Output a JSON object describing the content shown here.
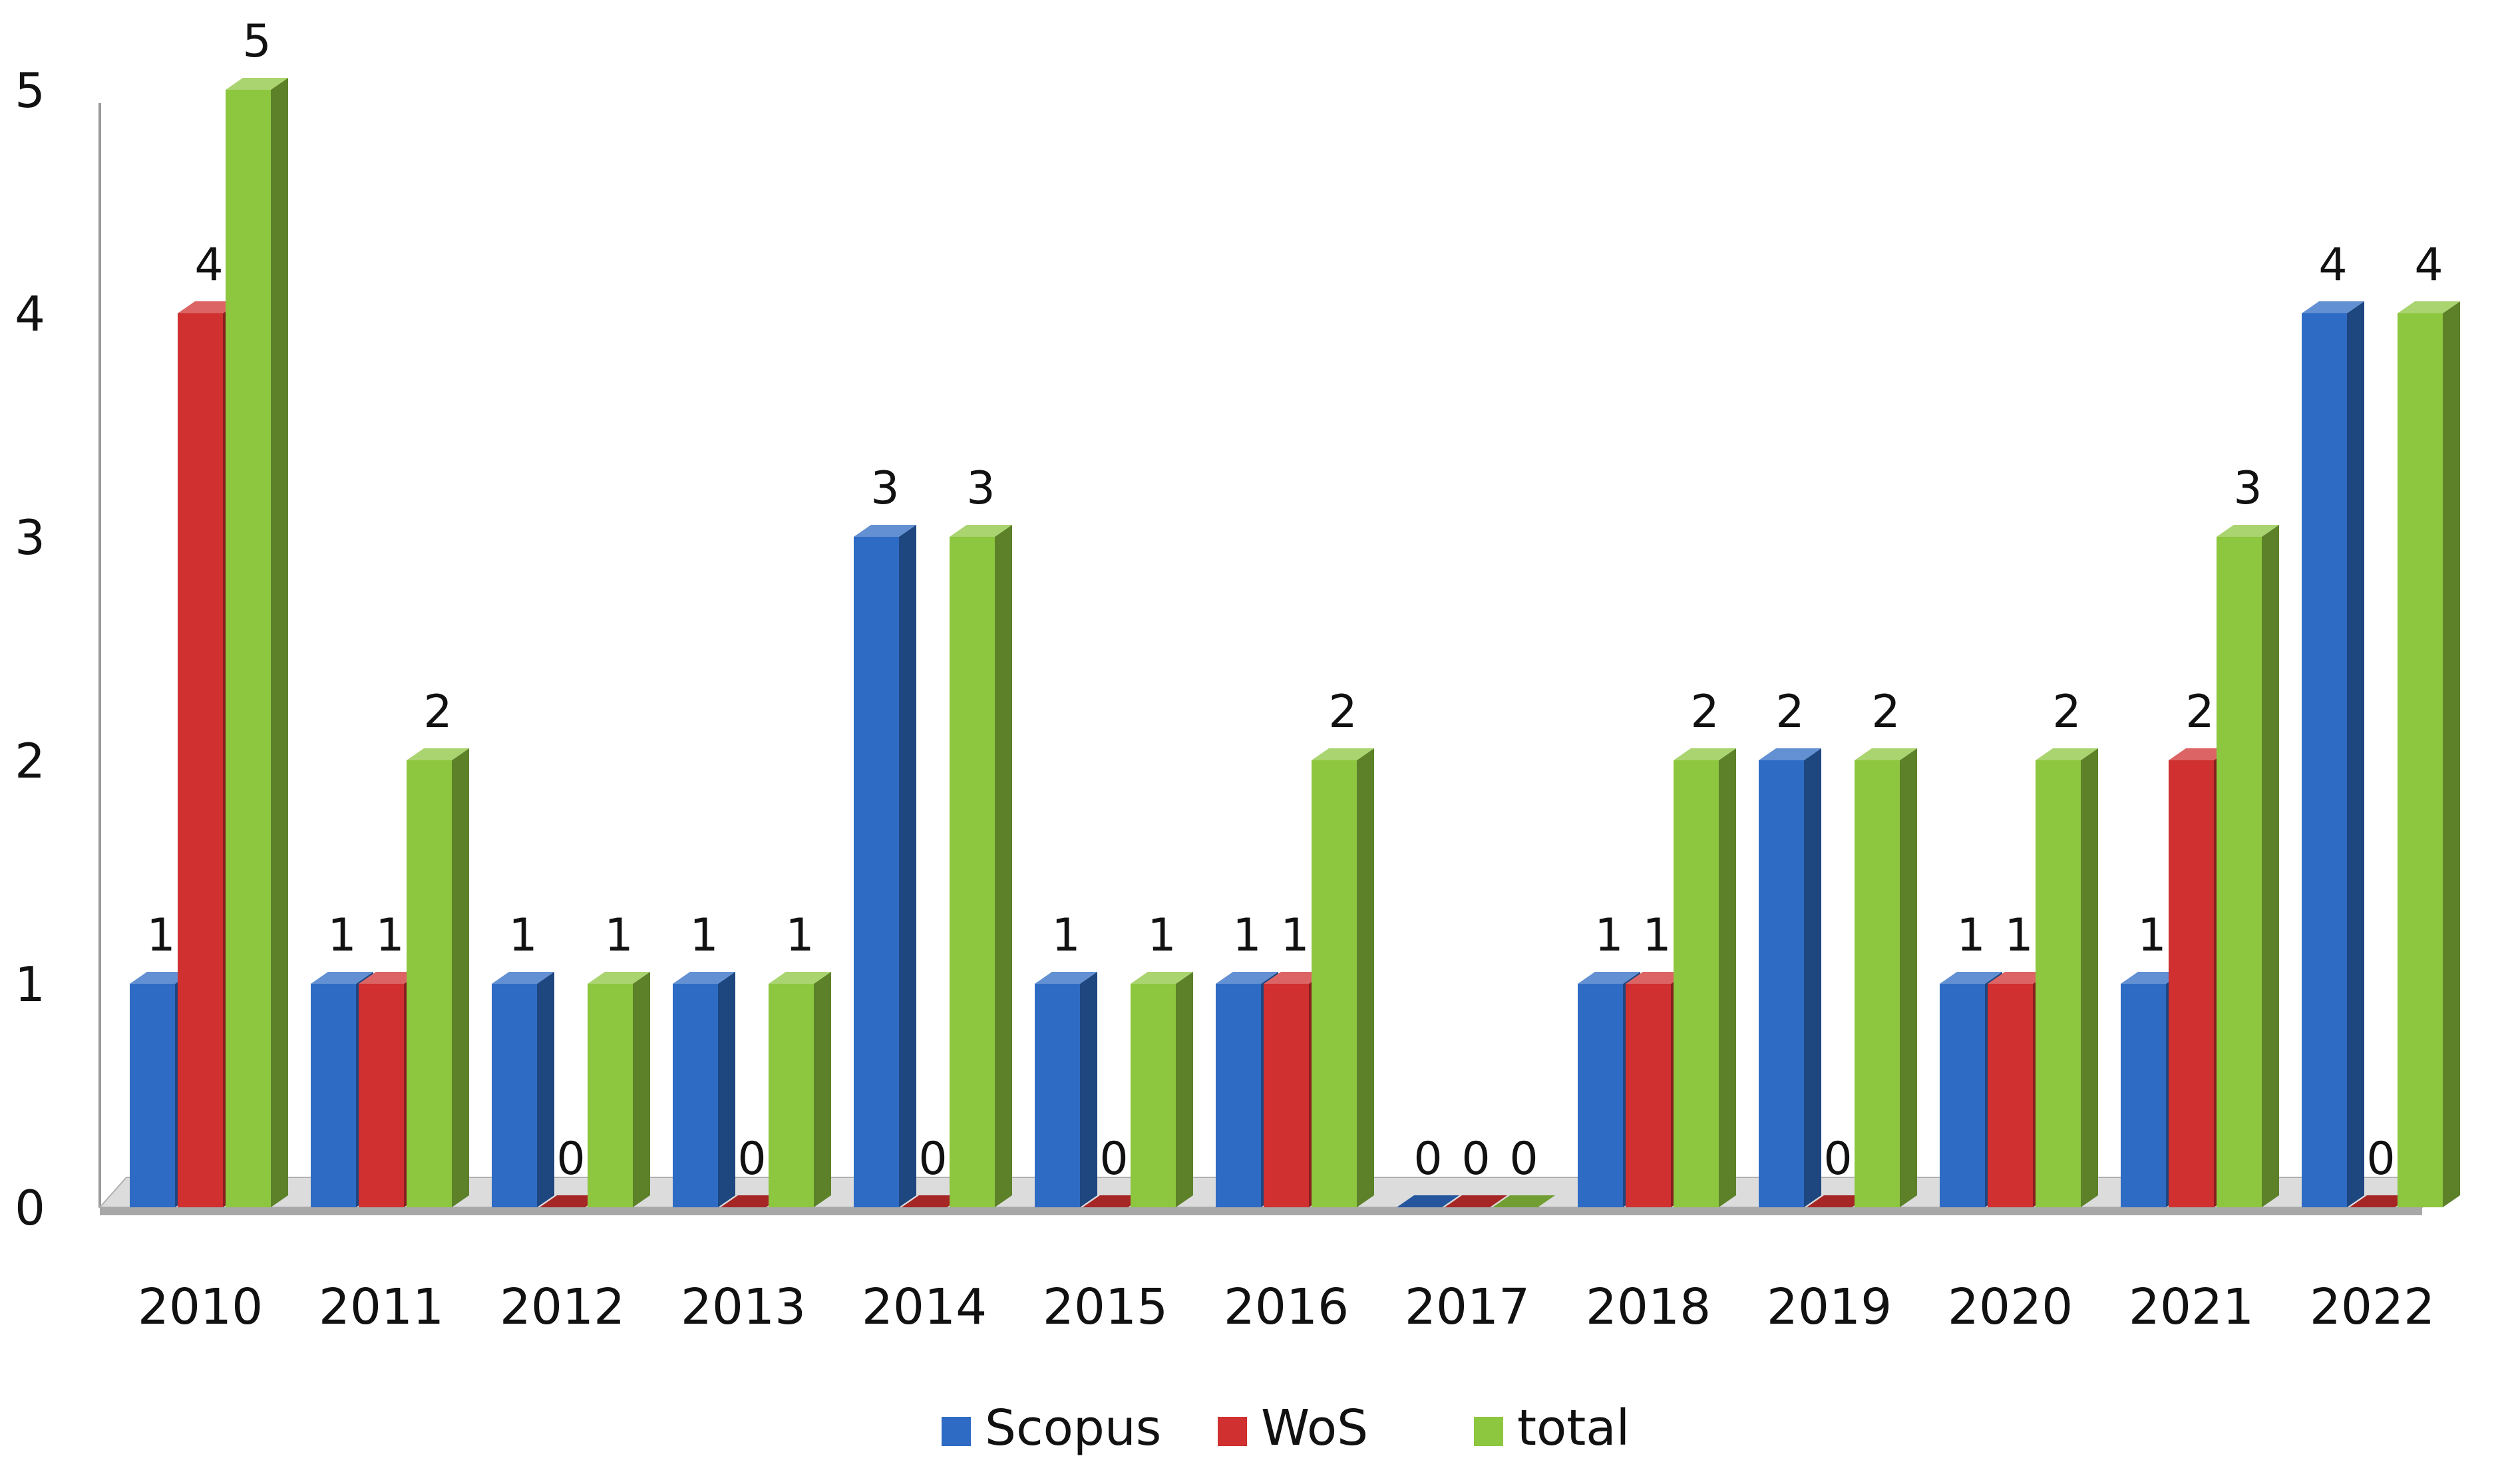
{
  "chart_data": {
    "type": "bar",
    "title": "",
    "xlabel": "",
    "ylabel": "",
    "categories": [
      "2010",
      "2011",
      "2012",
      "2013",
      "2014",
      "2015",
      "2016",
      "2017",
      "2018",
      "2019",
      "2020",
      "2021",
      "2022"
    ],
    "series": [
      {
        "name": "Scopus",
        "color": "#2E6BC4",
        "values": [
          1,
          1,
          1,
          1,
          3,
          1,
          1,
          0,
          1,
          2,
          1,
          1,
          4
        ]
      },
      {
        "name": "WoS",
        "color": "#D03030",
        "values": [
          4,
          1,
          0,
          0,
          0,
          0,
          1,
          0,
          1,
          0,
          1,
          2,
          0
        ]
      },
      {
        "name": "total",
        "color": "#8DC63F",
        "values": [
          5,
          2,
          1,
          1,
          3,
          1,
          2,
          0,
          2,
          2,
          2,
          3,
          4
        ]
      }
    ],
    "yticks": [
      0,
      1,
      2,
      3,
      4,
      5
    ],
    "ylim": [
      0,
      5
    ],
    "grid": false,
    "data_labels": true,
    "legend_position": "bottom-center"
  }
}
